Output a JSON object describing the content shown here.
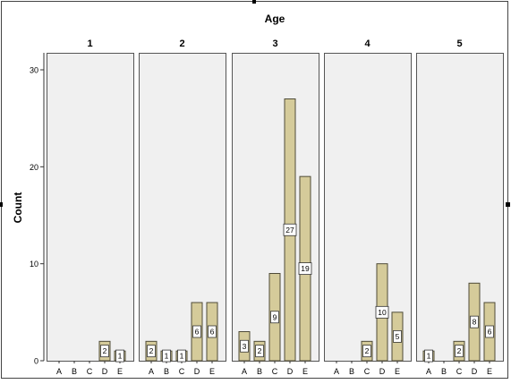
{
  "chart_data": {
    "type": "bar",
    "title": "Age",
    "ylabel": "Count",
    "xlabel": "",
    "panels": [
      "1",
      "2",
      "3",
      "4",
      "5"
    ],
    "categories": [
      "A",
      "B",
      "C",
      "D",
      "E"
    ],
    "values": [
      [
        0,
        0,
        0,
        2,
        1
      ],
      [
        2,
        1,
        1,
        6,
        6
      ],
      [
        3,
        2,
        9,
        27,
        19
      ],
      [
        0,
        0,
        2,
        10,
        5
      ],
      [
        1,
        0,
        2,
        8,
        6
      ]
    ],
    "ylim": [
      0,
      31
    ],
    "yticks": [
      0,
      10,
      20,
      30
    ],
    "grid": false,
    "legend": "none",
    "colors": {
      "bar_fill": "#D5CB9A",
      "bar_stroke": "#4F4B38",
      "panel_fill": "#F0F0F0",
      "panel_stroke": "#555555",
      "axis": "#333333",
      "label_box": "#FFFFFF"
    }
  }
}
